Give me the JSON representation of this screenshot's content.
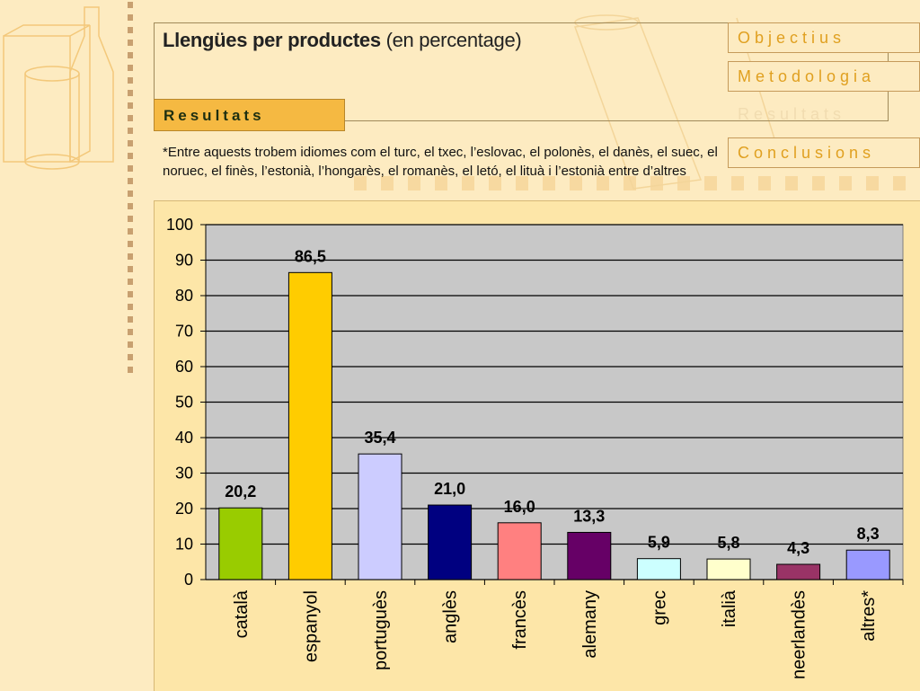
{
  "header": {
    "title_bold": "Llengües per productes",
    "title_rest": " (en percentage)"
  },
  "nav": {
    "items": [
      "Objectius",
      "Metodologia",
      "Resultats",
      "Conclusions"
    ],
    "active": "Resultats"
  },
  "section_tab": "Resultats",
  "note": "*Entre aquests trobem idiomes com el turc, el txec, l’eslovac, el polonès, el danès, el suec, el noruec, el finès, l’estonià, l’hongarès, el romanès, el letó, el lituà i l’estonià entre d’altres",
  "colors": {
    "background": "#fdebc1",
    "plot_area": "#c8c8c8",
    "accent": "#f5b942",
    "nav_text": "#e0a020"
  },
  "chart_data": {
    "type": "bar",
    "categories": [
      "català",
      "espanyol",
      "portuguès",
      "anglès",
      "francès",
      "alemany",
      "grec",
      "italià",
      "neerlandès",
      "altres*"
    ],
    "values": [
      20.2,
      86.5,
      35.4,
      21.0,
      16.0,
      13.3,
      5.9,
      5.8,
      4.3,
      8.3
    ],
    "value_labels": [
      "20,2",
      "86,5",
      "35,4",
      "21,0",
      "16,0",
      "13,3",
      "5,9",
      "5,8",
      "4,3",
      "8,3"
    ],
    "bar_colors": [
      "#99cc00",
      "#ffcc00",
      "#ccccff",
      "#000080",
      "#ff8080",
      "#660066",
      "#ccffff",
      "#ffffcc",
      "#993366",
      "#9999ff"
    ],
    "ylim": [
      0,
      100
    ],
    "yticks": [
      0,
      10,
      20,
      30,
      40,
      50,
      60,
      70,
      80,
      90,
      100
    ],
    "grid": true,
    "legend": "none"
  }
}
